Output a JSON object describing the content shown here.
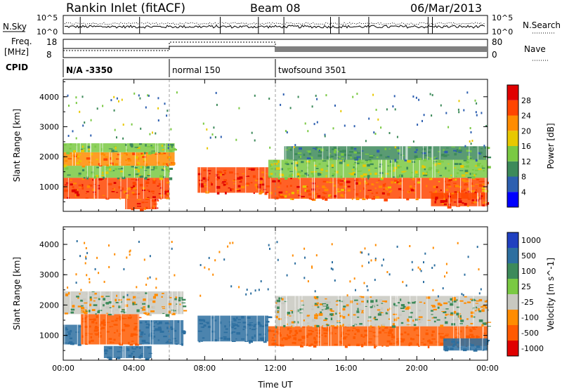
{
  "header": {
    "station": "Rankin Inlet (fitACF)",
    "beam": "Beam 08",
    "date": "06/Mar/2013"
  },
  "summary": {
    "nsky_label": "N.Sky",
    "nsky_ticks": [
      "10^5",
      "10^0"
    ],
    "nsearch_label": "N.Search",
    "nsearch_ticks": [
      "10^5",
      "10^0"
    ],
    "freq_label": "Freq.",
    "freq_unit": "[MHz]",
    "freq_ticks": [
      "18",
      "8"
    ],
    "nave_label": "Nave",
    "nave_ticks": [
      "80",
      "0"
    ],
    "cpid_label": "CPID",
    "cpid_segments": [
      {
        "name": "N/A",
        "id": "-3350",
        "start_hour": 0,
        "end_hour": 6
      },
      {
        "name": "normal",
        "id": "150",
        "start_hour": 6,
        "end_hour": 12
      },
      {
        "name": "twofsound",
        "id": "3501",
        "start_hour": 12,
        "end_hour": 24
      }
    ]
  },
  "chart_data": [
    {
      "type": "heatmap",
      "title": "",
      "xlabel": "Time UT",
      "ylabel": "Slant Range [km]",
      "xticks": [
        "00:00",
        "04:00",
        "08:00",
        "12:00",
        "16:00",
        "20:00",
        "00:00"
      ],
      "yticks": [
        "1000",
        "2000",
        "3000",
        "4000"
      ],
      "xlim_hours": [
        0,
        24
      ],
      "ylim_km": [
        180,
        4580
      ],
      "colorbar": {
        "label": "Power [dB]",
        "ticks": [
          "4",
          "8",
          "12",
          "16",
          "20",
          "24",
          "28"
        ],
        "colors": [
          "#0000ff",
          "#2d5fb0",
          "#3d8a5a",
          "#7ac943",
          "#e8c800",
          "#ff8c00",
          "#ff4500",
          "#e00000"
        ]
      },
      "regions": [
        {
          "t0": 0.0,
          "t1": 6.0,
          "r0": 600,
          "r1": 1300,
          "value": 26
        },
        {
          "t0": 0.0,
          "t1": 6.0,
          "r0": 1300,
          "r1": 1700,
          "value": 14
        },
        {
          "t0": 0.0,
          "t1": 6.3,
          "r0": 1700,
          "r1": 2150,
          "value": 22
        },
        {
          "t0": 0.0,
          "t1": 6.3,
          "r0": 2150,
          "r1": 2450,
          "value": 13
        },
        {
          "t0": 3.5,
          "t1": 5.3,
          "r0": 250,
          "r1": 600,
          "value": 27
        },
        {
          "t0": 7.6,
          "t1": 11.6,
          "r0": 800,
          "r1": 1650,
          "value": 26
        },
        {
          "t0": 11.6,
          "t1": 24.0,
          "r0": 600,
          "r1": 1300,
          "value": 24
        },
        {
          "t0": 11.6,
          "t1": 24.0,
          "r0": 1300,
          "r1": 1900,
          "value": 14
        },
        {
          "t0": 12.5,
          "t1": 24.0,
          "r0": 1900,
          "r1": 2350,
          "value": 11
        },
        {
          "t0": 20.8,
          "t1": 24.0,
          "r0": 350,
          "r1": 800,
          "value": 27
        }
      ]
    },
    {
      "type": "heatmap",
      "title": "",
      "xlabel": "Time UT",
      "ylabel": "Slant Range [km]",
      "xticks": [
        "00:00",
        "04:00",
        "08:00",
        "12:00",
        "16:00",
        "20:00",
        "00:00"
      ],
      "yticks": [
        "1000",
        "2000",
        "3000",
        "4000"
      ],
      "xlim_hours": [
        0,
        24
      ],
      "ylim_km": [
        180,
        4580
      ],
      "colorbar": {
        "label": "Velocity [m s^-1]",
        "ticks": [
          "1000",
          "500",
          "100",
          "25",
          "-25",
          "-100",
          "-500",
          "-1000"
        ],
        "colors": [
          "#2040c0",
          "#2d6fa0",
          "#3d8a5a",
          "#7ac943",
          "#c8c8c0",
          "#ff8c00",
          "#ff5a00",
          "#e00000"
        ]
      },
      "regions": [
        {
          "t0": 0.0,
          "t1": 1.0,
          "r0": 700,
          "r1": 1350,
          "value": 300
        },
        {
          "t0": 1.0,
          "t1": 4.3,
          "r0": 700,
          "r1": 1700,
          "value": -300
        },
        {
          "t0": 4.3,
          "t1": 6.8,
          "r0": 700,
          "r1": 1500,
          "value": 300
        },
        {
          "t0": 0.0,
          "t1": 6.8,
          "r0": 1700,
          "r1": 2450,
          "value": 0
        },
        {
          "t0": 2.3,
          "t1": 5.0,
          "r0": 250,
          "r1": 650,
          "value": 300
        },
        {
          "t0": 7.6,
          "t1": 11.6,
          "r0": 800,
          "r1": 1650,
          "value": 300
        },
        {
          "t0": 11.6,
          "t1": 24.0,
          "r0": 650,
          "r1": 1300,
          "value": -300
        },
        {
          "t0": 12.0,
          "t1": 24.0,
          "r0": 1300,
          "r1": 2300,
          "value": 0
        },
        {
          "t0": 21.5,
          "t1": 24.0,
          "r0": 500,
          "r1": 900,
          "value": 300
        }
      ]
    }
  ]
}
